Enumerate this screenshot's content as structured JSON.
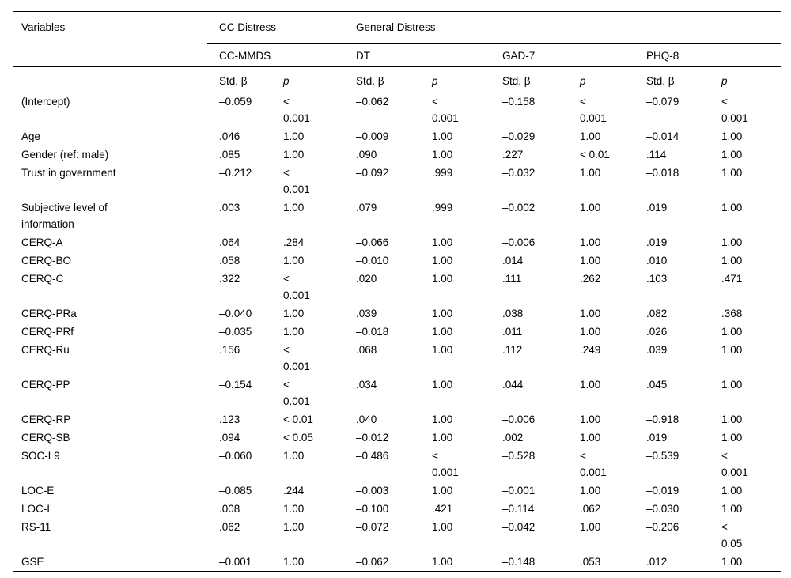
{
  "table": {
    "columns": {
      "variables_label": "Variables",
      "groups": [
        {
          "label": "CC Distress"
        },
        {
          "label": "General Distress"
        }
      ],
      "measures": [
        "CC-MMDS",
        "DT",
        "GAD-7",
        "PHQ-8"
      ],
      "stat_headers": {
        "beta": "Std. β",
        "p": "p"
      }
    },
    "rows": [
      {
        "variable": "(Intercept)",
        "cells": [
          {
            "beta": "–0.059",
            "p": "<\n0.001"
          },
          {
            "beta": "–0.062",
            "p": "<\n0.001"
          },
          {
            "beta": "–0.158",
            "p": "<\n0.001"
          },
          {
            "beta": "–0.079",
            "p": "<\n0.001"
          }
        ]
      },
      {
        "variable": "Age",
        "cells": [
          {
            "beta": ".046",
            "p": "1.00"
          },
          {
            "beta": "–0.009",
            "p": "1.00"
          },
          {
            "beta": "–0.029",
            "p": "1.00"
          },
          {
            "beta": "–0.014",
            "p": "1.00"
          }
        ]
      },
      {
        "variable": "Gender (ref: male)",
        "cells": [
          {
            "beta": ".085",
            "p": "1.00"
          },
          {
            "beta": ".090",
            "p": "1.00"
          },
          {
            "beta": ".227",
            "p": "< 0.01"
          },
          {
            "beta": ".114",
            "p": "1.00"
          }
        ]
      },
      {
        "variable": "Trust in government",
        "cells": [
          {
            "beta": "–0.212",
            "p": "<\n0.001"
          },
          {
            "beta": "–0.092",
            "p": ".999"
          },
          {
            "beta": "–0.032",
            "p": "1.00"
          },
          {
            "beta": "–0.018",
            "p": "1.00"
          }
        ]
      },
      {
        "variable": "Subjective level of\ninformation",
        "cells": [
          {
            "beta": ".003",
            "p": "1.00"
          },
          {
            "beta": ".079",
            "p": ".999"
          },
          {
            "beta": "–0.002",
            "p": "1.00"
          },
          {
            "beta": ".019",
            "p": "1.00"
          }
        ]
      },
      {
        "variable": "CERQ-A",
        "cells": [
          {
            "beta": ".064",
            "p": ".284"
          },
          {
            "beta": "–0.066",
            "p": "1.00"
          },
          {
            "beta": "–0.006",
            "p": "1.00"
          },
          {
            "beta": ".019",
            "p": "1.00"
          }
        ]
      },
      {
        "variable": "CERQ-BO",
        "cells": [
          {
            "beta": ".058",
            "p": "1.00"
          },
          {
            "beta": "–0.010",
            "p": "1.00"
          },
          {
            "beta": ".014",
            "p": "1.00"
          },
          {
            "beta": ".010",
            "p": "1.00"
          }
        ]
      },
      {
        "variable": "CERQ-C",
        "cells": [
          {
            "beta": ".322",
            "p": "<\n0.001"
          },
          {
            "beta": ".020",
            "p": "1.00"
          },
          {
            "beta": ".111",
            "p": ".262"
          },
          {
            "beta": ".103",
            "p": ".471"
          }
        ]
      },
      {
        "variable": "CERQ-PRa",
        "cells": [
          {
            "beta": "–0.040",
            "p": "1.00"
          },
          {
            "beta": ".039",
            "p": "1.00"
          },
          {
            "beta": ".038",
            "p": "1.00"
          },
          {
            "beta": ".082",
            "p": ".368"
          }
        ]
      },
      {
        "variable": "CERQ-PRf",
        "cells": [
          {
            "beta": "–0.035",
            "p": "1.00"
          },
          {
            "beta": "–0.018",
            "p": "1.00"
          },
          {
            "beta": ".011",
            "p": "1.00"
          },
          {
            "beta": ".026",
            "p": "1.00"
          }
        ]
      },
      {
        "variable": "CERQ-Ru",
        "cells": [
          {
            "beta": ".156",
            "p": "<\n0.001"
          },
          {
            "beta": ".068",
            "p": "1.00"
          },
          {
            "beta": ".112",
            "p": ".249"
          },
          {
            "beta": ".039",
            "p": "1.00"
          }
        ]
      },
      {
        "variable": "CERQ-PP",
        "cells": [
          {
            "beta": "–0.154",
            "p": "<\n0.001"
          },
          {
            "beta": ".034",
            "p": "1.00"
          },
          {
            "beta": ".044",
            "p": "1.00"
          },
          {
            "beta": ".045",
            "p": "1.00"
          }
        ]
      },
      {
        "variable": "CERQ-RP",
        "cells": [
          {
            "beta": ".123",
            "p": "< 0.01"
          },
          {
            "beta": ".040",
            "p": "1.00"
          },
          {
            "beta": "–0.006",
            "p": "1.00"
          },
          {
            "beta": "–0.918",
            "p": "1.00"
          }
        ]
      },
      {
        "variable": "CERQ-SB",
        "cells": [
          {
            "beta": ".094",
            "p": "< 0.05"
          },
          {
            "beta": "–0.012",
            "p": "1.00"
          },
          {
            "beta": ".002",
            "p": "1.00"
          },
          {
            "beta": ".019",
            "p": "1.00"
          }
        ]
      },
      {
        "variable": "SOC-L9",
        "cells": [
          {
            "beta": "–0.060",
            "p": "1.00"
          },
          {
            "beta": "–0.486",
            "p": "<\n0.001"
          },
          {
            "beta": "–0.528",
            "p": "<\n0.001"
          },
          {
            "beta": "–0.539",
            "p": "<\n0.001"
          }
        ]
      },
      {
        "variable": "LOC-E",
        "cells": [
          {
            "beta": "–0.085",
            "p": ".244"
          },
          {
            "beta": "–0.003",
            "p": "1.00"
          },
          {
            "beta": "–0.001",
            "p": "1.00"
          },
          {
            "beta": "–0.019",
            "p": "1.00"
          }
        ]
      },
      {
        "variable": "LOC-I",
        "cells": [
          {
            "beta": ".008",
            "p": "1.00"
          },
          {
            "beta": "–0.100",
            "p": ".421"
          },
          {
            "beta": "–0.114",
            "p": ".062"
          },
          {
            "beta": "–0.030",
            "p": "1.00"
          }
        ]
      },
      {
        "variable": "RS-11",
        "cells": [
          {
            "beta": ".062",
            "p": "1.00"
          },
          {
            "beta": "–0.072",
            "p": "1.00"
          },
          {
            "beta": "–0.042",
            "p": "1.00"
          },
          {
            "beta": "–0.206",
            "p": "<\n0.05"
          }
        ]
      },
      {
        "variable": "GSE",
        "cells": [
          {
            "beta": "–0.001",
            "p": "1.00"
          },
          {
            "beta": "–0.062",
            "p": "1.00"
          },
          {
            "beta": "–0.148",
            "p": ".053"
          },
          {
            "beta": ".012",
            "p": "1.00"
          }
        ]
      }
    ]
  }
}
